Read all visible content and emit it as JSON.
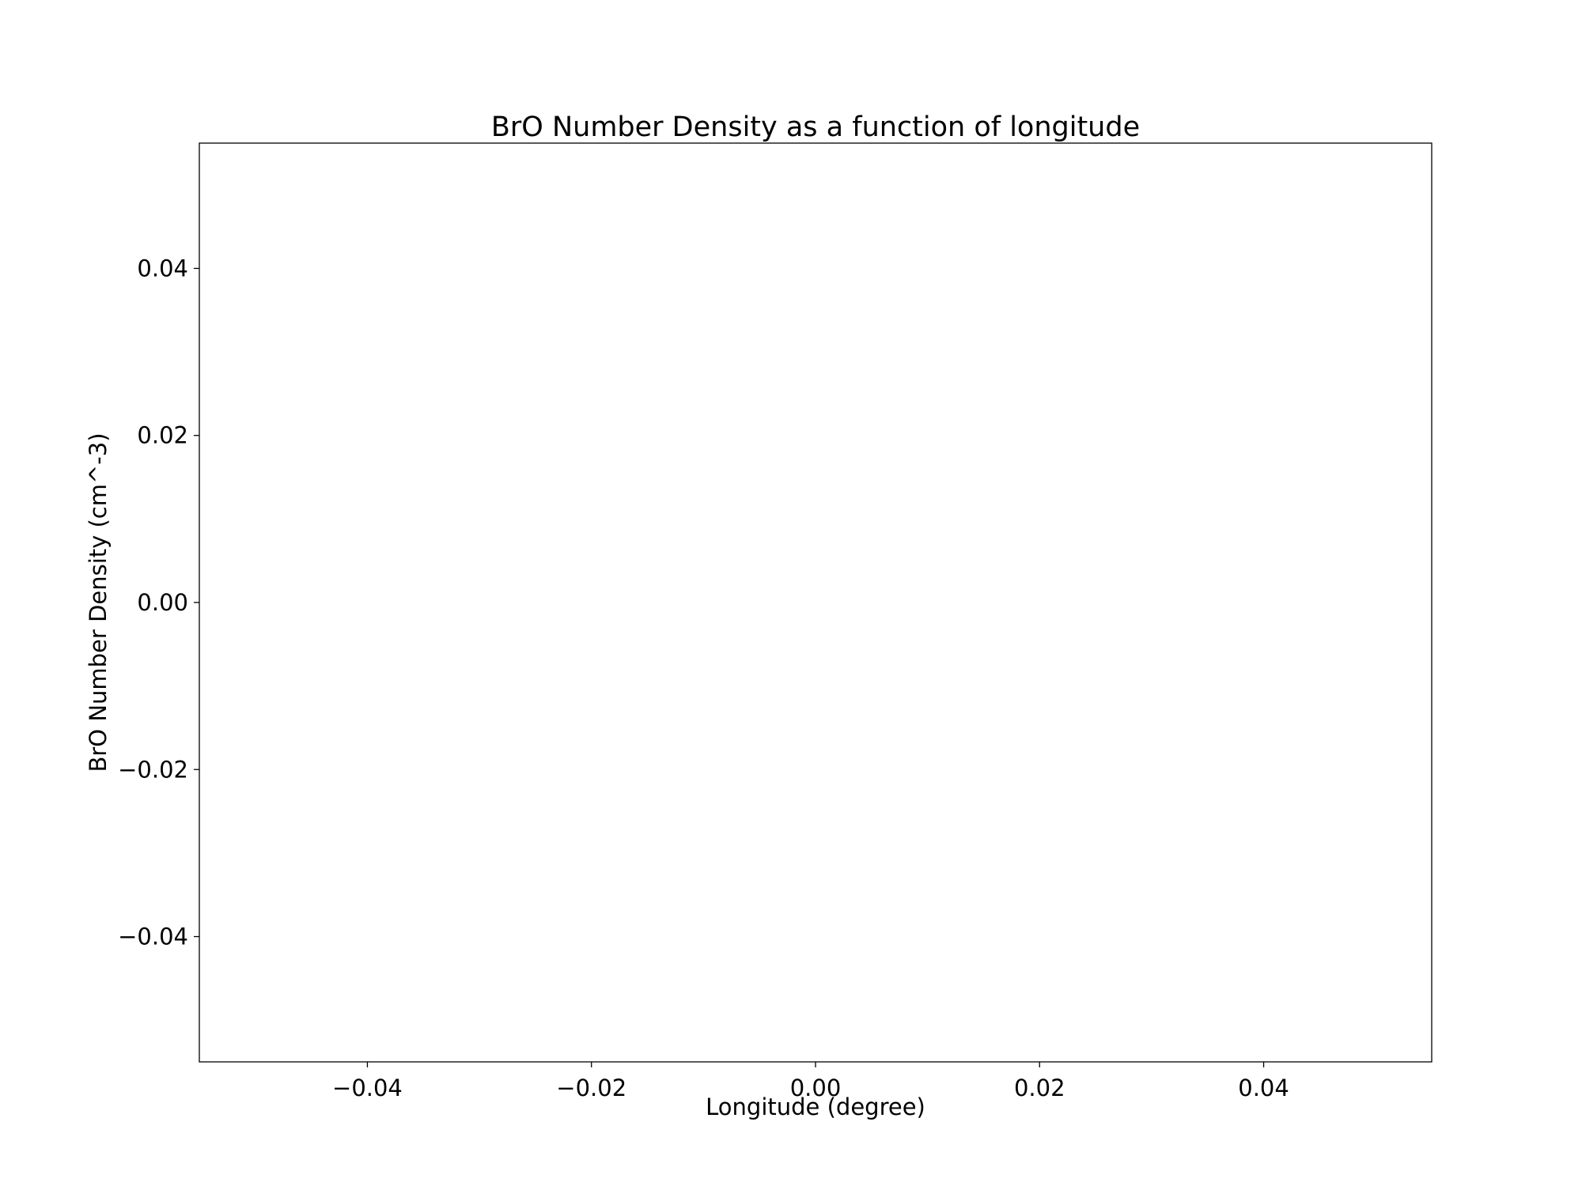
{
  "chart_data": {
    "type": "line",
    "title": "BrO Number Density as a function of longitude",
    "xlabel": "Longitude (degree)",
    "ylabel": "BrO Number Density (cm^-3)",
    "xlim": [
      -0.055,
      0.055
    ],
    "ylim": [
      -0.055,
      0.055
    ],
    "xticks": [
      -0.04,
      -0.02,
      0.0,
      0.02,
      0.04
    ],
    "yticks": [
      -0.04,
      -0.02,
      0.0,
      0.02,
      0.04
    ],
    "xtick_labels": [
      "−0.04",
      "−0.02",
      "0.00",
      "0.02",
      "0.04"
    ],
    "ytick_labels": [
      "−0.04",
      "−0.02",
      "0.00",
      "0.02",
      "0.04"
    ],
    "series": [],
    "grid": false,
    "legend": "none"
  }
}
